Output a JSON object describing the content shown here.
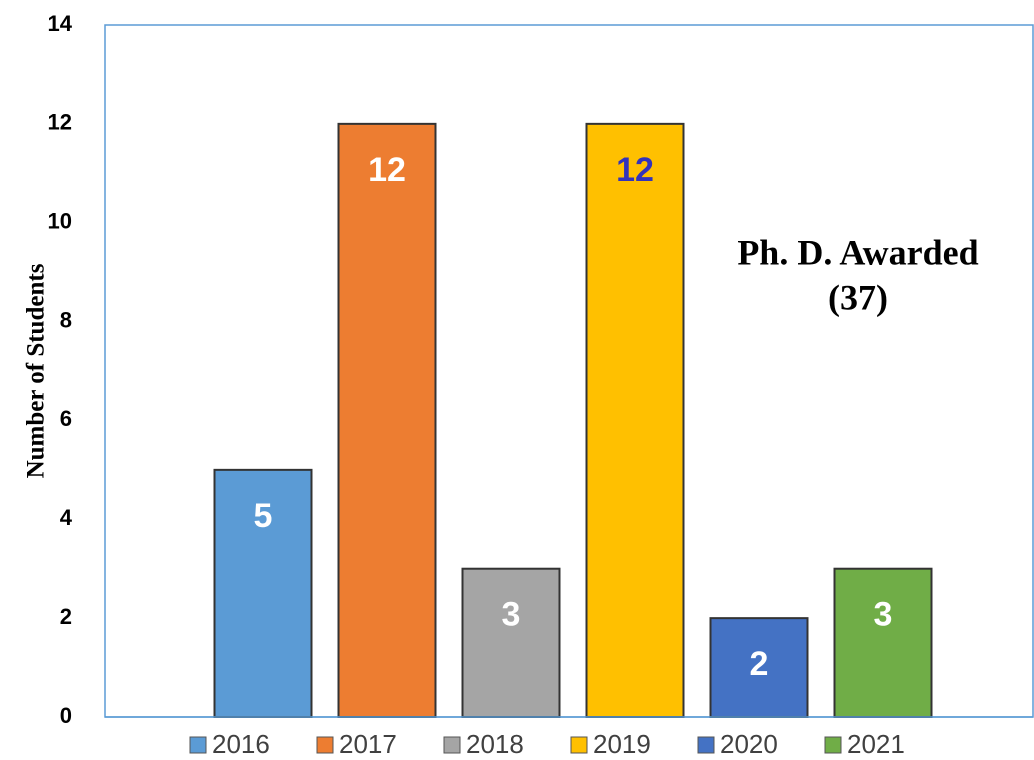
{
  "chart_data": {
    "type": "bar",
    "ylabel": "Number of Students",
    "annotation": [
      "Ph. D. Awarded",
      "(37)"
    ],
    "series": [
      {
        "name": "2016",
        "color": "#5b9bd5",
        "label_color": "#ffffff",
        "values": [
          5
        ]
      },
      {
        "name": "2017",
        "color": "#ed7d31",
        "label_color": "#ffffff",
        "values": [
          12
        ]
      },
      {
        "name": "2018",
        "color": "#a5a5a5",
        "label_color": "#ffffff",
        "values": [
          3
        ]
      },
      {
        "name": "2019",
        "color": "#ffc000",
        "label_color": "#3333bb",
        "values": [
          12
        ]
      },
      {
        "name": "2020",
        "color": "#4472c4",
        "label_color": "#ffffff",
        "values": [
          2
        ]
      },
      {
        "name": "2021",
        "color": "#70ad47",
        "label_color": "#ffffff",
        "values": [
          3
        ]
      }
    ],
    "ylim": [
      0,
      14
    ],
    "yticks": [
      0,
      2,
      4,
      6,
      8,
      10,
      12,
      14
    ],
    "grid": false
  }
}
